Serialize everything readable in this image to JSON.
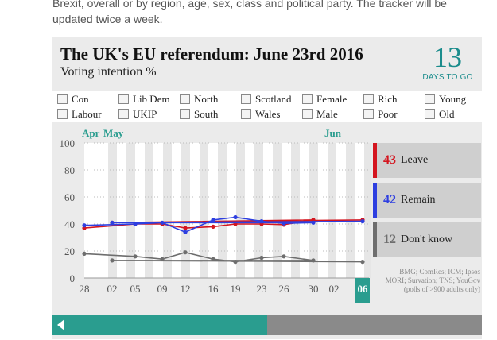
{
  "intro_text": "Brexit, overall or by region, age, sex, class and political party. The tracker will be updated twice a week.",
  "header": {
    "title": "The UK's EU referendum: June 23rd 2016",
    "subtitle": "Voting intention %",
    "days_count": "13",
    "days_label": "DAYS TO GO"
  },
  "filters": [
    {
      "label": "Con"
    },
    {
      "label": "Lib Dem"
    },
    {
      "label": "North"
    },
    {
      "label": "Scotland"
    },
    {
      "label": "Female"
    },
    {
      "label": "Rich"
    },
    {
      "label": "Young"
    },
    {
      "label": "Labour"
    },
    {
      "label": "UKIP"
    },
    {
      "label": "South"
    },
    {
      "label": "Wales"
    },
    {
      "label": "Male"
    },
    {
      "label": "Poor"
    },
    {
      "label": "Old"
    }
  ],
  "months": [
    "Apr",
    "May",
    "Jun"
  ],
  "legend": [
    {
      "value": "43",
      "label": "Leave",
      "color": "#d4151f"
    },
    {
      "value": "42",
      "label": "Remain",
      "color": "#2e3fe0"
    },
    {
      "value": "12",
      "label": "Don't know",
      "color": "#6e6e6e"
    }
  ],
  "source": "BMG; ComRes; ICM; Ipsos MORI; Survation; TNS; YouGov (polls of >900 adults only)",
  "chart_data": {
    "type": "line",
    "title": "The UK's EU referendum: June 23rd 2016",
    "ylabel": "Voting intention %",
    "ylim": [
      0,
      100
    ],
    "yticks": [
      0,
      20,
      40,
      60,
      80,
      100
    ],
    "x": [
      "28",
      "02",
      "05",
      "09",
      "12",
      "16",
      "19",
      "23",
      "26",
      "30",
      "02",
      "06"
    ],
    "highlight_x": "06",
    "series": [
      {
        "name": "Leave",
        "color": "#d4151f",
        "points": [
          [
            "28",
            37
          ],
          [
            "05",
            40
          ],
          [
            "09",
            40
          ],
          [
            "12",
            37
          ],
          [
            "16",
            38
          ],
          [
            "19",
            40
          ],
          [
            "23",
            40
          ],
          [
            "26",
            39.5
          ],
          [
            "30",
            43
          ],
          [
            "02",
            41
          ],
          [
            "06",
            43
          ]
        ]
      },
      {
        "name": "Remain",
        "color": "#2e3fe0",
        "points": [
          [
            "28",
            39
          ],
          [
            "05",
            40
          ],
          [
            "09",
            41
          ],
          [
            "12",
            34
          ],
          [
            "16",
            43
          ],
          [
            "19",
            45
          ],
          [
            "23",
            42
          ],
          [
            "26",
            40.5
          ],
          [
            "30",
            41
          ],
          [
            "02",
            41
          ],
          [
            "06",
            42
          ]
        ]
      },
      {
        "name": "Don't know",
        "color": "#6e6e6e",
        "points": [
          [
            "28",
            18
          ],
          [
            "05",
            16
          ],
          [
            "09",
            14
          ],
          [
            "12",
            19
          ],
          [
            "16",
            14
          ],
          [
            "19",
            12
          ],
          [
            "23",
            15
          ],
          [
            "26",
            16
          ],
          [
            "30",
            13
          ],
          [
            "02",
            13
          ],
          [
            "06",
            12
          ]
        ]
      }
    ]
  }
}
